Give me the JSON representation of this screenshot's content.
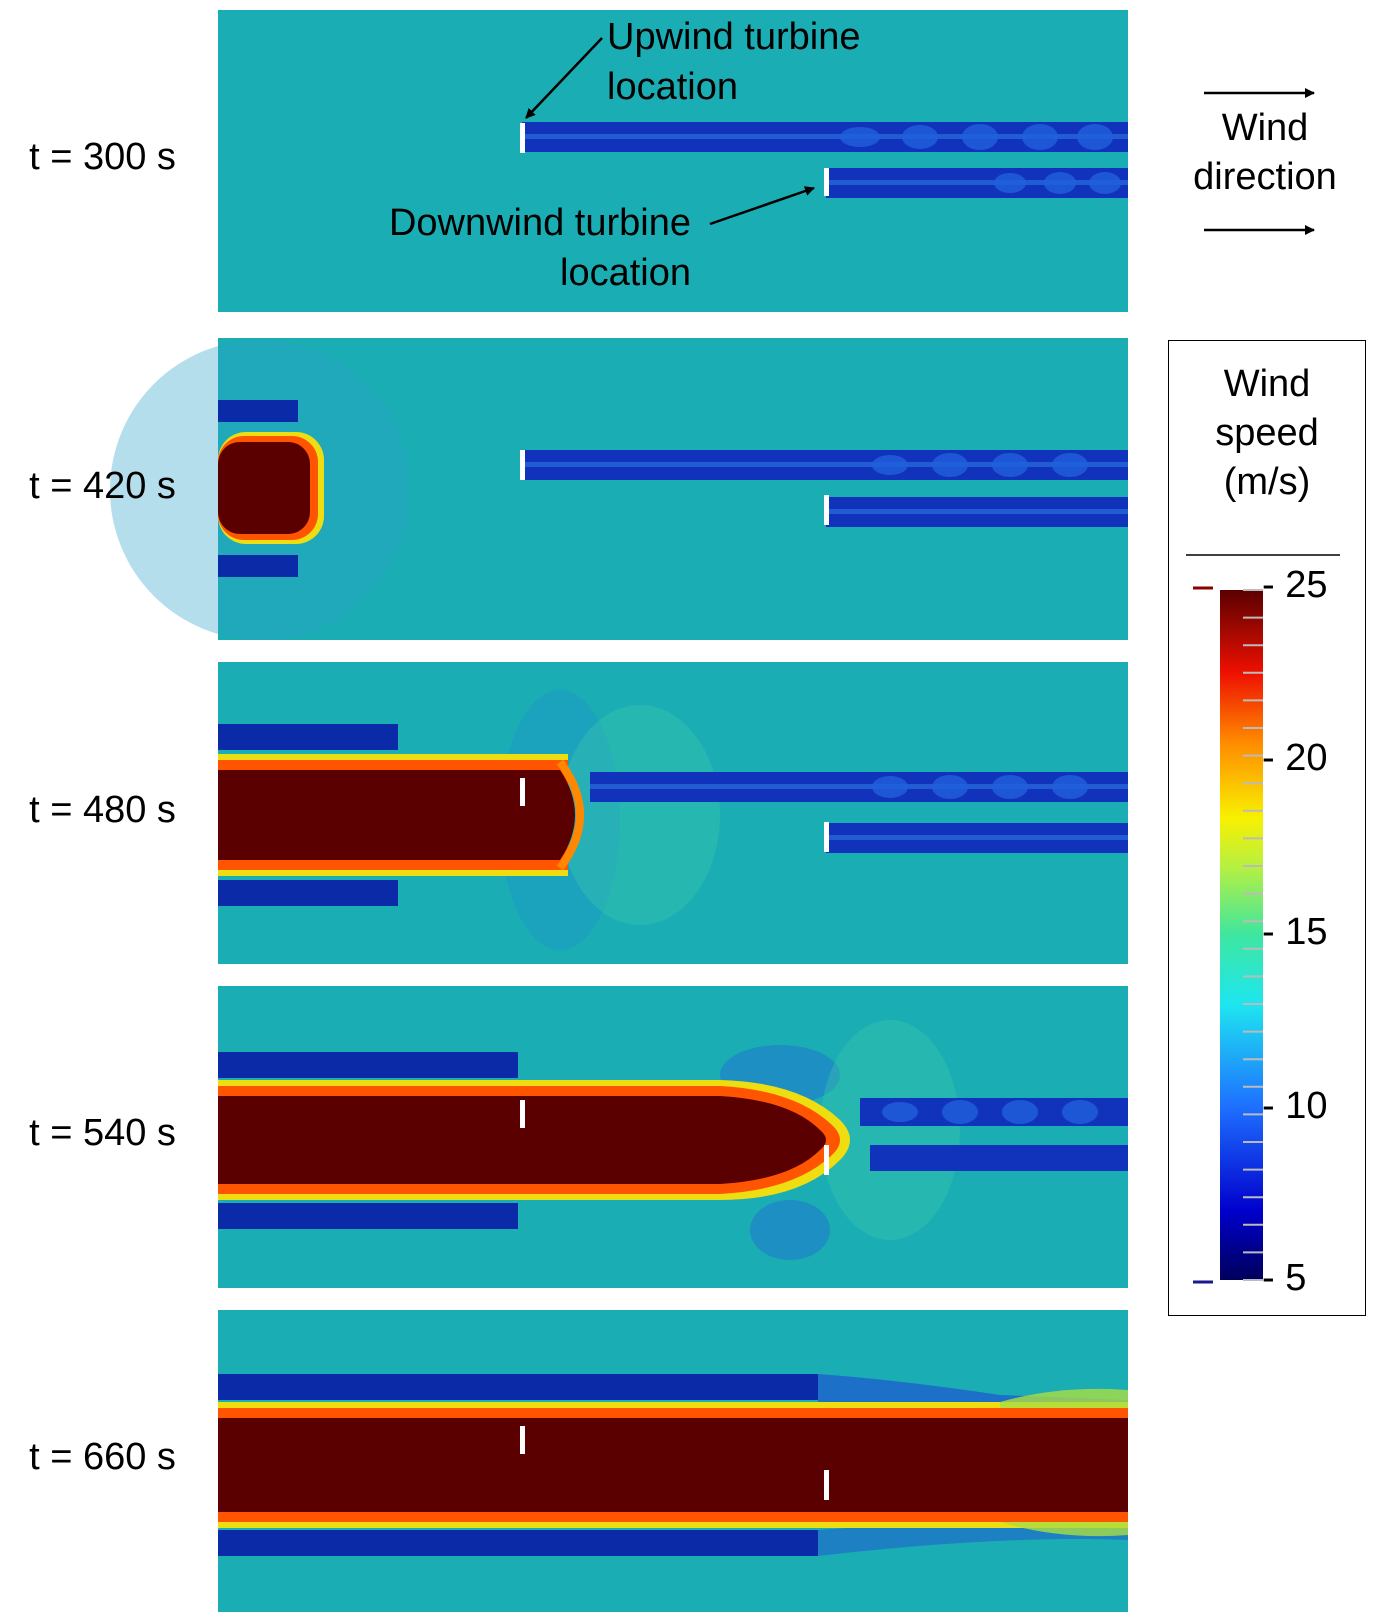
{
  "panels": [
    {
      "label": "t = 300 s",
      "time_s": 300
    },
    {
      "label": "t = 420 s",
      "time_s": 420
    },
    {
      "label": "t = 480 s",
      "time_s": 480
    },
    {
      "label": "t = 540 s",
      "time_s": 540
    },
    {
      "label": "t = 660 s",
      "time_s": 660
    }
  ],
  "annotations": {
    "upwind_line1": "Upwind turbine",
    "upwind_line2": "location",
    "downwind_line1": "Downwind turbine",
    "downwind_line2": "location"
  },
  "wind_direction": {
    "line1": "Wind",
    "line2": "direction"
  },
  "legend": {
    "title_line1": "Wind",
    "title_line2": "speed",
    "title_line3": "(m/s)",
    "ticks": [
      "25",
      "20",
      "15",
      "10",
      "5"
    ],
    "range": [
      5,
      25
    ]
  },
  "colors": {
    "background_flow": "#1aaeb4",
    "wake_blue": "#1133bb",
    "jet_core": "#5a0000",
    "jet_red": "#dd1100",
    "jet_orange": "#ff7700",
    "jet_yellow": "#eedd11",
    "turbine_marker": "#ffffff"
  }
}
